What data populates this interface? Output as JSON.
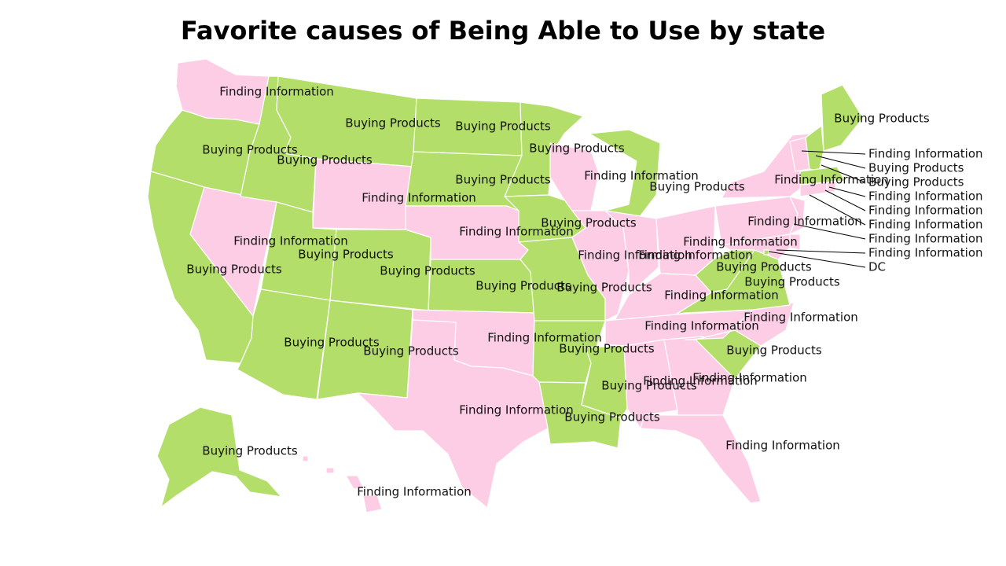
{
  "title": "Favorite causes of Being Able to Use by state",
  "colors": {
    "Buying Products": "#b3de69",
    "Finding Information": "#fccde5"
  },
  "states": [
    {
      "id": "WA",
      "category": "Finding Information"
    },
    {
      "id": "OR",
      "category": "Buying Products"
    },
    {
      "id": "CA",
      "category": "Buying Products"
    },
    {
      "id": "NV",
      "category": "Finding Information"
    },
    {
      "id": "ID",
      "category": "Buying Products"
    },
    {
      "id": "MT",
      "category": "Buying Products"
    },
    {
      "id": "WY",
      "category": "Finding Information"
    },
    {
      "id": "UT",
      "category": "Buying Products"
    },
    {
      "id": "AZ",
      "category": "Buying Products"
    },
    {
      "id": "CO",
      "category": "Buying Products"
    },
    {
      "id": "NM",
      "category": "Buying Products"
    },
    {
      "id": "ND",
      "category": "Buying Products"
    },
    {
      "id": "SD",
      "category": "Buying Products"
    },
    {
      "id": "NE",
      "category": "Finding Information"
    },
    {
      "id": "KS",
      "category": "Buying Products"
    },
    {
      "id": "OK",
      "category": "Finding Information"
    },
    {
      "id": "TX",
      "category": "Finding Information"
    },
    {
      "id": "MN",
      "category": "Buying Products"
    },
    {
      "id": "IA",
      "category": "Buying Products"
    },
    {
      "id": "MO",
      "category": "Buying Products"
    },
    {
      "id": "AR",
      "category": "Buying Products"
    },
    {
      "id": "LA",
      "category": "Buying Products"
    },
    {
      "id": "WI",
      "category": "Finding Information"
    },
    {
      "id": "IL",
      "category": "Finding Information"
    },
    {
      "id": "MI",
      "category": "Buying Products"
    },
    {
      "id": "IN",
      "category": "Finding Information"
    },
    {
      "id": "OH",
      "category": "Finding Information"
    },
    {
      "id": "KY",
      "category": "Finding Information"
    },
    {
      "id": "TN",
      "category": "Finding Information"
    },
    {
      "id": "MS",
      "category": "Buying Products"
    },
    {
      "id": "AL",
      "category": "Finding Information"
    },
    {
      "id": "GA",
      "category": "Finding Information"
    },
    {
      "id": "FL",
      "category": "Finding Information"
    },
    {
      "id": "SC",
      "category": "Buying Products"
    },
    {
      "id": "NC",
      "category": "Finding Information"
    },
    {
      "id": "VA",
      "category": "Buying Products"
    },
    {
      "id": "WV",
      "category": "Buying Products"
    },
    {
      "id": "PA",
      "category": "Finding Information"
    },
    {
      "id": "NY",
      "category": "Finding Information"
    },
    {
      "id": "ME",
      "category": "Buying Products"
    },
    {
      "id": "VT",
      "category": "Finding Information"
    },
    {
      "id": "NH",
      "category": "Buying Products"
    },
    {
      "id": "MA",
      "category": "Buying Products"
    },
    {
      "id": "RI",
      "category": "Finding Information"
    },
    {
      "id": "CT",
      "category": "Finding Information"
    },
    {
      "id": "NJ",
      "category": "Finding Information"
    },
    {
      "id": "DE",
      "category": "Finding Information"
    },
    {
      "id": "MD",
      "category": "Finding Information"
    },
    {
      "id": "DC",
      "category": "Buying Products"
    },
    {
      "id": "AK",
      "category": "Buying Products"
    },
    {
      "id": "HI",
      "category": "Finding Information"
    }
  ],
  "callouts": [
    {
      "id": "VT",
      "label": "Finding Information"
    },
    {
      "id": "NH",
      "label": "Buying Products"
    },
    {
      "id": "MA",
      "label": "Buying Products"
    },
    {
      "id": "RI",
      "label": "Finding Information"
    },
    {
      "id": "CT",
      "label": "Finding Information"
    },
    {
      "id": "NJ",
      "label": "Finding Information"
    },
    {
      "id": "DE",
      "label": "Finding Information"
    },
    {
      "id": "MD",
      "label": "Finding Information"
    },
    {
      "id": "DC",
      "label": "DC"
    }
  ]
}
